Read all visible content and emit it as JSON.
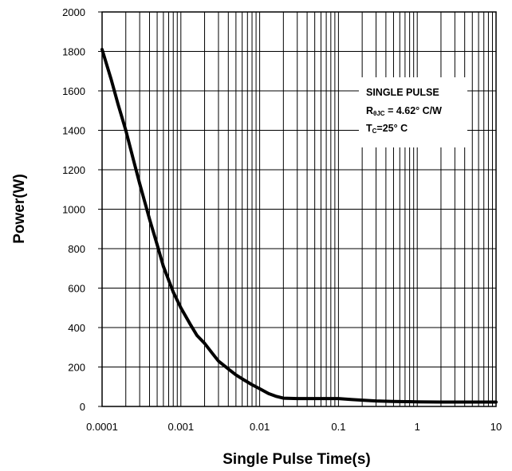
{
  "chart_data": {
    "type": "line",
    "xscale": "log",
    "xlim": [
      0.0001,
      10
    ],
    "ylim": [
      0,
      2000
    ],
    "grid": true,
    "xlabel": "Single Pulse Time(s)",
    "ylabel": "Power(W)",
    "x_tick_labels": [
      "0.0001",
      "0.001",
      "0.01",
      "0.1",
      "1",
      "10"
    ],
    "y_tick_labels": [
      "0",
      "200",
      "400",
      "600",
      "800",
      "1000",
      "1200",
      "1400",
      "1600",
      "1800",
      "2000"
    ],
    "annotation": {
      "line1": "SINGLE PULSE",
      "line2_prefix": "R",
      "line2_sub": "θJC",
      "line2_rest": " = 4.62° C/W",
      "line3_prefix": "T",
      "line3_sub": "C",
      "line3_rest": "=25° C"
    },
    "series": [
      {
        "x": [
          0.0001,
          0.00013,
          0.00016,
          0.0002,
          0.00025,
          0.0003,
          0.0004,
          0.0005,
          0.0006,
          0.0008,
          0.001,
          0.0013,
          0.0016,
          0.002,
          0.0025,
          0.003,
          0.004,
          0.005,
          0.006,
          0.008,
          0.01,
          0.013,
          0.016,
          0.02,
          0.03,
          0.05,
          0.08,
          0.1,
          0.15,
          0.2,
          0.3,
          0.5,
          0.8,
          1,
          2,
          5,
          10
        ],
        "y": [
          1810,
          1660,
          1530,
          1400,
          1250,
          1130,
          950,
          820,
          710,
          580,
          500,
          420,
          360,
          320,
          270,
          230,
          190,
          160,
          140,
          110,
          90,
          65,
          52,
          42,
          40,
          40,
          40,
          40,
          35,
          32,
          28,
          25,
          24,
          23,
          22,
          22,
          22
        ]
      }
    ]
  }
}
